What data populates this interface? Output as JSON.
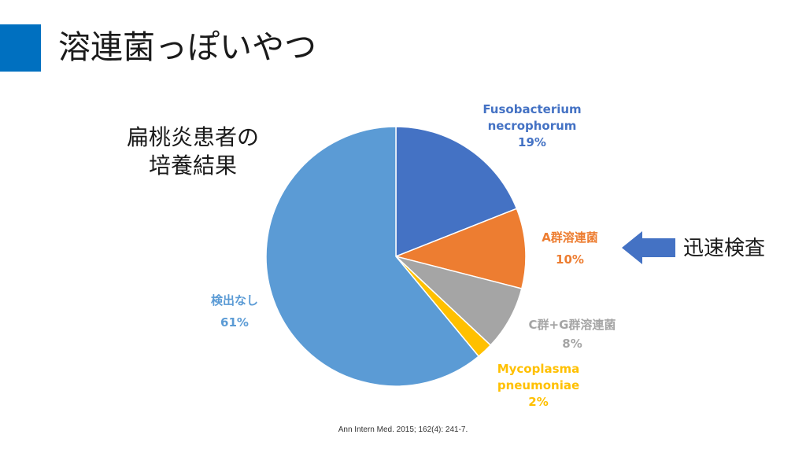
{
  "slide": {
    "title": "溶連菌っぽいやつ",
    "side_label_line1": "扁桃炎患者の",
    "side_label_line2": "培養結果",
    "rapid_test_label": "迅速検査",
    "citation": "Ann Intern Med. 2015; 162(4): 241-7.",
    "accent_color": "#0070c0"
  },
  "chart_data": {
    "type": "pie",
    "title": "",
    "start_angle_deg": 0,
    "slices": [
      {
        "label_lines": [
          "Fusobacterium",
          "necrophorum"
        ],
        "value": 19,
        "pct_label": "19%",
        "color": "#4472c4"
      },
      {
        "label_lines": [
          "A群溶連菌"
        ],
        "value": 10,
        "pct_label": "10%",
        "color": "#ed7d31"
      },
      {
        "label_lines": [
          "C群+G群溶連菌"
        ],
        "value": 8,
        "pct_label": "8%",
        "color": "#a5a5a5"
      },
      {
        "label_lines": [
          "Mycoplasma",
          "pneumoniae"
        ],
        "value": 2,
        "pct_label": "2%",
        "color": "#ffc000"
      },
      {
        "label_lines": [
          "検出なし"
        ],
        "value": 61,
        "pct_label": "61%",
        "color": "#5b9bd5"
      }
    ]
  }
}
